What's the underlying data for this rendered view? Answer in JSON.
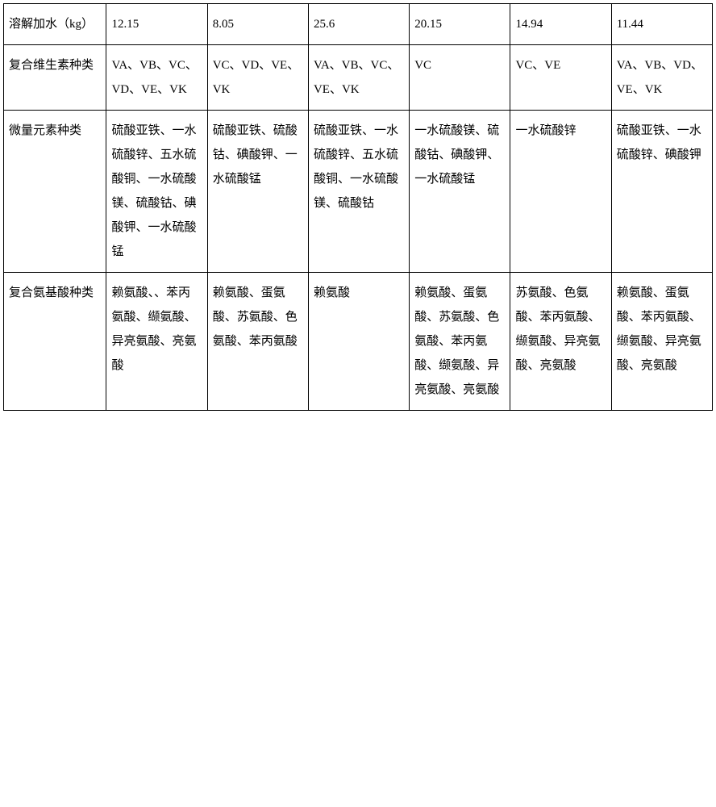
{
  "table": {
    "columns": [
      "label",
      "c1",
      "c2",
      "c3",
      "c4",
      "c5",
      "c6"
    ],
    "rows": [
      {
        "label": "溶解加水（kg）",
        "c1": "12.15",
        "c2": "8.05",
        "c3": "25.6",
        "c4": "20.15",
        "c5": "14.94",
        "c6": "11.44"
      },
      {
        "label": "复合维生素种类",
        "c1": "VA、VB、VC、VD、VE、VK",
        "c2": "VC、VD、VE、VK",
        "c3": "VA、VB、VC、VE、VK",
        "c4": "VC",
        "c5": "VC、VE",
        "c6": "VA、VB、VD、VE、VK"
      },
      {
        "label": "微量元素种类",
        "c1": "硫酸亚铁、一水硫酸锌、五水硫酸铜、一水硫酸镁、硫酸钴、碘酸钾、一水硫酸锰",
        "c2": "硫酸亚铁、硫酸钴、碘酸钾、一水硫酸锰",
        "c3": "硫酸亚铁、一水硫酸锌、五水硫酸铜、一水硫酸镁、硫酸钴",
        "c4": "一水硫酸镁、硫酸钴、碘酸钾、一水硫酸锰",
        "c5": "一水硫酸锌",
        "c6": "硫酸亚铁、一水硫酸锌、碘酸钾"
      },
      {
        "label": "复合氨基酸种类",
        "c1": "赖氨酸、、苯丙氨酸、缬氨酸、异亮氨酸、亮氨酸",
        "c2": "赖氨酸、蛋氨酸、苏氨酸、色氨酸、苯丙氨酸",
        "c3": "赖氨酸",
        "c4": "赖氨酸、蛋氨酸、苏氨酸、色氨酸、苯丙氨酸、缬氨酸、异亮氨酸、亮氨酸",
        "c5": "苏氨酸、色氨酸、苯丙氨酸、缬氨酸、异亮氨酸、亮氨酸",
        "c6": "赖氨酸、蛋氨酸、苯丙氨酸、缬氨酸、异亮氨酸、亮氨酸"
      }
    ],
    "border_color": "#000000",
    "background_color": "#ffffff",
    "text_color": "#000000",
    "font_family": "SimSun",
    "font_size_pt": 11,
    "line_height": 2.0,
    "col_widths_pct": [
      14.5,
      14.25,
      14.25,
      14.25,
      14.25,
      14.25,
      14.25
    ]
  }
}
